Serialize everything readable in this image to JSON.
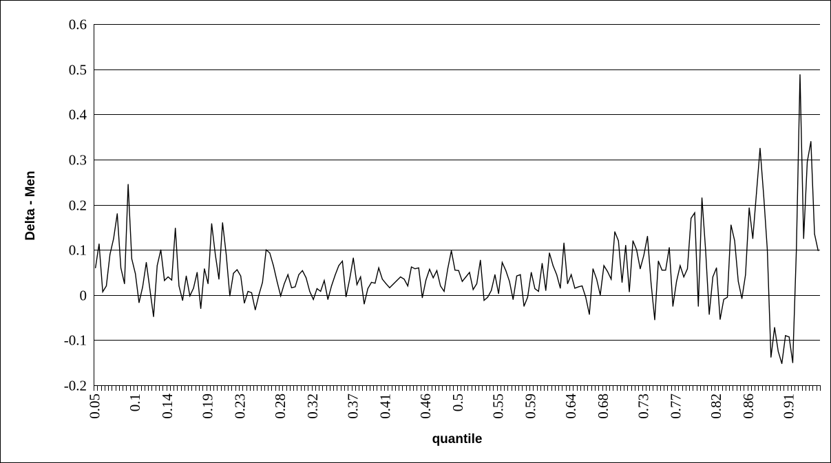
{
  "chart_data": {
    "type": "line",
    "title": "",
    "xlabel": "quantile",
    "ylabel": "Delta - Men",
    "ylim": [
      -0.2,
      0.6
    ],
    "y_ticks": [
      "-0.2",
      "-0.1",
      "0",
      "0.1",
      "0.2",
      "0.3",
      "0.4",
      "0.5",
      "0.6"
    ],
    "x_tick_labels": [
      "0.05",
      "0.1",
      "0.14",
      "0.19",
      "0.23",
      "0.28",
      "0.32",
      "0.37",
      "0.41",
      "0.46",
      "0.5",
      "0.55",
      "0.59",
      "0.64",
      "0.68",
      "0.73",
      "0.77",
      "0.82",
      "0.86",
      "0.91"
    ],
    "grid": "horizontal",
    "line_color": "#000000",
    "series": [
      {
        "x_start": 0.05,
        "x_step": 0.0045,
        "values": [
          0.06,
          0.113,
          0.007,
          0.02,
          0.09,
          0.125,
          0.18,
          0.06,
          0.025,
          0.245,
          0.08,
          0.047,
          -0.017,
          0.018,
          0.072,
          0.012,
          -0.048,
          0.065,
          0.1,
          0.032,
          0.04,
          0.033,
          0.148,
          0.02,
          -0.012,
          0.042,
          -0.002,
          0.015,
          0.05,
          -0.03,
          0.058,
          0.025,
          0.158,
          0.09,
          0.035,
          0.16,
          0.09,
          -0.002,
          0.048,
          0.056,
          0.042,
          -0.018,
          0.008,
          0.005,
          -0.033,
          0.0,
          0.028,
          0.1,
          0.093,
          0.065,
          0.03,
          -0.002,
          0.025,
          0.045,
          0.016,
          0.018,
          0.045,
          0.054,
          0.038,
          0.008,
          -0.01,
          0.014,
          0.008,
          0.032,
          -0.01,
          0.02,
          0.044,
          0.065,
          0.075,
          -0.004,
          0.035,
          0.082,
          0.023,
          0.04,
          -0.02,
          0.014,
          0.028,
          0.026,
          0.06,
          0.035,
          0.025,
          0.016,
          0.024,
          0.032,
          0.04,
          0.035,
          0.02,
          0.062,
          0.058,
          0.06,
          -0.006,
          0.033,
          0.057,
          0.038,
          0.054,
          0.02,
          0.008,
          0.058,
          0.098,
          0.055,
          0.054,
          0.03,
          0.04,
          0.05,
          0.012,
          0.025,
          0.077,
          -0.012,
          -0.005,
          0.01,
          0.045,
          0.003,
          0.072,
          0.054,
          0.03,
          -0.01,
          0.042,
          0.045,
          -0.025,
          -0.005,
          0.05,
          0.014,
          0.008,
          0.07,
          0.01,
          0.093,
          0.065,
          0.045,
          0.015,
          0.115,
          0.025,
          0.045,
          0.015,
          0.018,
          0.02,
          -0.005,
          -0.043,
          0.058,
          0.035,
          0.0,
          0.065,
          0.052,
          0.035,
          0.14,
          0.12,
          0.028,
          0.11,
          0.007,
          0.12,
          0.1,
          0.058,
          0.088,
          0.13,
          0.025,
          -0.055,
          0.075,
          0.055,
          0.055,
          0.105,
          -0.025,
          0.03,
          0.065,
          0.04,
          0.058,
          0.17,
          0.182,
          -0.025,
          0.215,
          0.1,
          -0.043,
          0.04,
          0.06,
          -0.054,
          -0.01,
          -0.005,
          0.155,
          0.12,
          0.03,
          -0.008,
          0.045,
          0.193,
          0.125,
          0.225,
          0.325,
          0.22,
          0.1,
          -0.138,
          -0.072,
          -0.125,
          -0.152,
          -0.09,
          -0.093,
          -0.15,
          0.1,
          0.488,
          0.125,
          0.295,
          0.34,
          0.135,
          0.098
        ]
      }
    ]
  }
}
